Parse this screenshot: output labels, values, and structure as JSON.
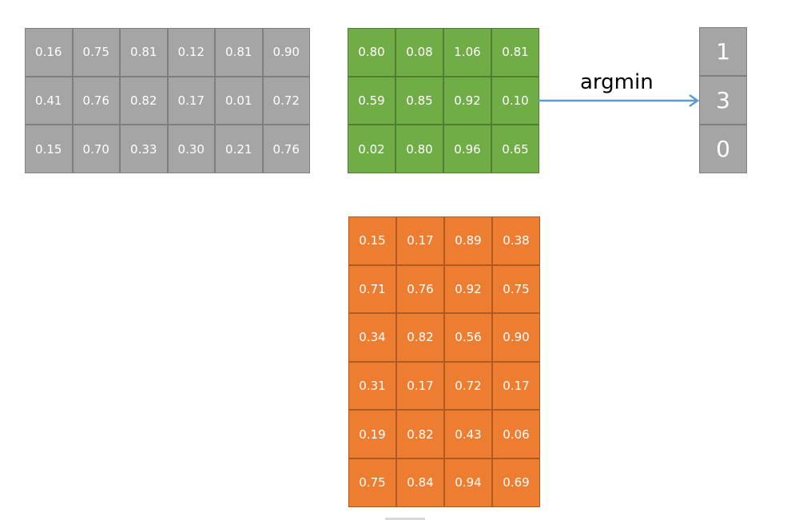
{
  "matrix_a": {
    "color": "#a5a5a5",
    "rows": [
      [
        "0.16",
        "0.75",
        "0.81",
        "0.12",
        "0.81",
        "0.90"
      ],
      [
        "0.41",
        "0.76",
        "0.82",
        "0.17",
        "0.01",
        "0.72"
      ],
      [
        "0.15",
        "0.70",
        "0.33",
        "0.30",
        "0.21",
        "0.76"
      ]
    ]
  },
  "matrix_b": {
    "color": "#70ad47",
    "rows": [
      [
        "0.80",
        "0.08",
        "1.06",
        "0.81"
      ],
      [
        "0.59",
        "0.85",
        "0.92",
        "0.10"
      ],
      [
        "0.02",
        "0.80",
        "0.96",
        "0.65"
      ]
    ]
  },
  "matrix_c": {
    "color": "#ed7d31",
    "rows": [
      [
        "0.15",
        "0.17",
        "0.89",
        "0.38"
      ],
      [
        "0.71",
        "0.76",
        "0.92",
        "0.75"
      ],
      [
        "0.34",
        "0.82",
        "0.56",
        "0.90"
      ],
      [
        "0.31",
        "0.17",
        "0.72",
        "0.17"
      ],
      [
        "0.19",
        "0.82",
        "0.43",
        "0.06"
      ],
      [
        "0.75",
        "0.84",
        "0.94",
        "0.69"
      ]
    ]
  },
  "argmin": {
    "label": "argmin",
    "arrow_color": "#5b9bd5",
    "values": [
      "1",
      "3",
      "0"
    ]
  }
}
